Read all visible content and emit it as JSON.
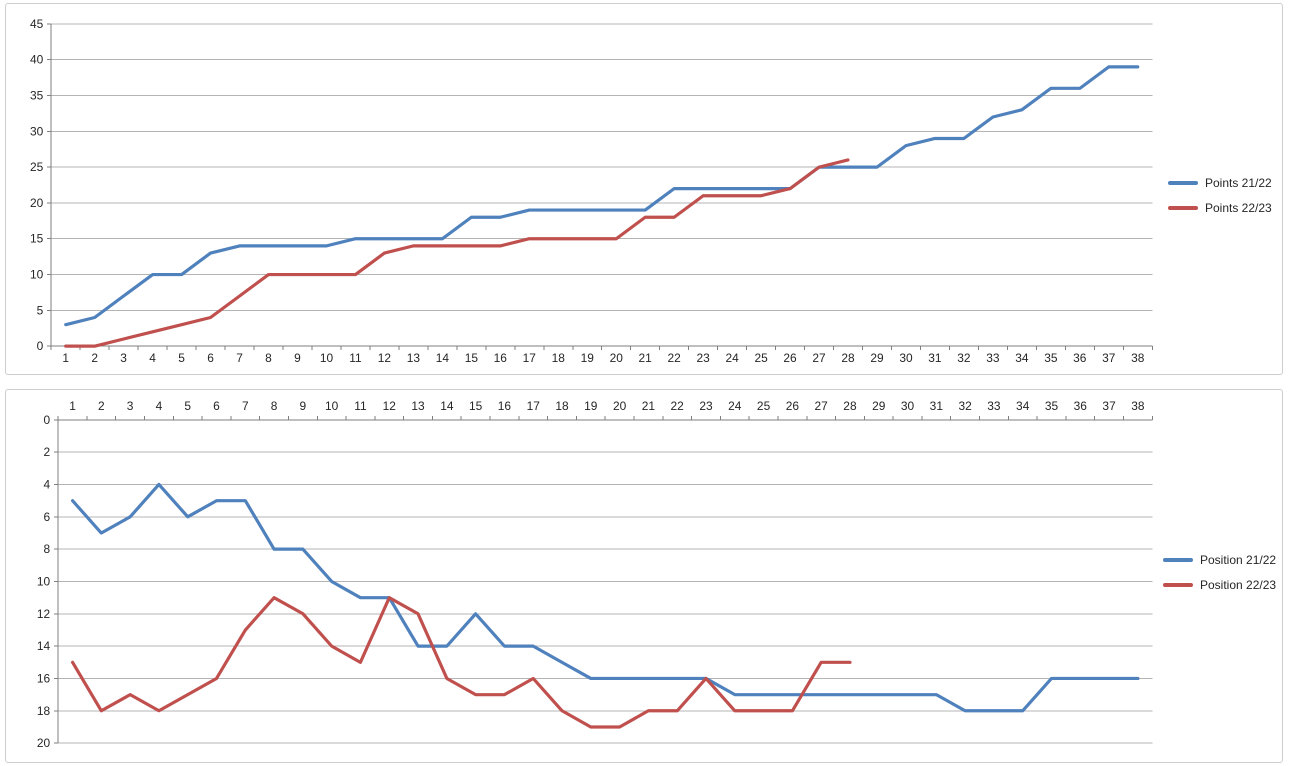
{
  "colors": {
    "series1": "#4F81BD",
    "series2": "#C0504D",
    "gridline": "#b4b4b4",
    "axis": "#7f7f7f",
    "label": "#262626"
  },
  "chart_data": [
    {
      "type": "line",
      "title": "",
      "xlabel": "",
      "ylabel": "",
      "x": [
        1,
        2,
        3,
        4,
        5,
        6,
        7,
        8,
        9,
        10,
        11,
        12,
        13,
        14,
        15,
        16,
        17,
        18,
        19,
        20,
        21,
        22,
        23,
        24,
        25,
        26,
        27,
        28,
        29,
        30,
        31,
        32,
        33,
        34,
        35,
        36,
        37,
        38
      ],
      "ylim": [
        0,
        45
      ],
      "yticks": [
        0,
        5,
        10,
        15,
        20,
        25,
        30,
        35,
        40,
        45
      ],
      "y_reversed": false,
      "x_axis_position": "bottom",
      "legend_position": "right",
      "grid": true,
      "series": [
        {
          "name": "Points 21/22",
          "color": "#4F81BD",
          "values": [
            3,
            4,
            7,
            10,
            10,
            13,
            14,
            14,
            14,
            14,
            15,
            15,
            15,
            15,
            18,
            18,
            19,
            19,
            19,
            19,
            19,
            22,
            22,
            22,
            22,
            22,
            25,
            25,
            25,
            28,
            29,
            29,
            32,
            33,
            36,
            36,
            39,
            39
          ]
        },
        {
          "name": "Points 22/23",
          "color": "#C0504D",
          "values": [
            0,
            0,
            1,
            2,
            3,
            4,
            7,
            10,
            10,
            10,
            10,
            13,
            14,
            14,
            14,
            14,
            15,
            15,
            15,
            15,
            18,
            18,
            21,
            21,
            21,
            22,
            25,
            26
          ]
        }
      ]
    },
    {
      "type": "line",
      "title": "",
      "xlabel": "",
      "ylabel": "",
      "x": [
        1,
        2,
        3,
        4,
        5,
        6,
        7,
        8,
        9,
        10,
        11,
        12,
        13,
        14,
        15,
        16,
        17,
        18,
        19,
        20,
        21,
        22,
        23,
        24,
        25,
        26,
        27,
        28,
        29,
        30,
        31,
        32,
        33,
        34,
        35,
        36,
        37,
        38
      ],
      "ylim": [
        0,
        20
      ],
      "yticks": [
        0,
        2,
        4,
        6,
        8,
        10,
        12,
        14,
        16,
        18,
        20
      ],
      "y_reversed": true,
      "x_axis_position": "top",
      "legend_position": "right",
      "grid": true,
      "series": [
        {
          "name": "Position 21/22",
          "color": "#4F81BD",
          "values": [
            5,
            7,
            6,
            4,
            6,
            5,
            5,
            8,
            8,
            10,
            11,
            11,
            14,
            14,
            12,
            14,
            14,
            15,
            16,
            16,
            16,
            16,
            16,
            17,
            17,
            17,
            17,
            17,
            17,
            17,
            17,
            18,
            18,
            18,
            16,
            16,
            16,
            16
          ]
        },
        {
          "name": "Position 22/23",
          "color": "#C0504D",
          "values": [
            15,
            18,
            17,
            18,
            17,
            16,
            13,
            11,
            12,
            14,
            15,
            11,
            12,
            16,
            17,
            17,
            16,
            18,
            19,
            19,
            18,
            18,
            16,
            18,
            18,
            18,
            15,
            15
          ]
        }
      ]
    }
  ]
}
